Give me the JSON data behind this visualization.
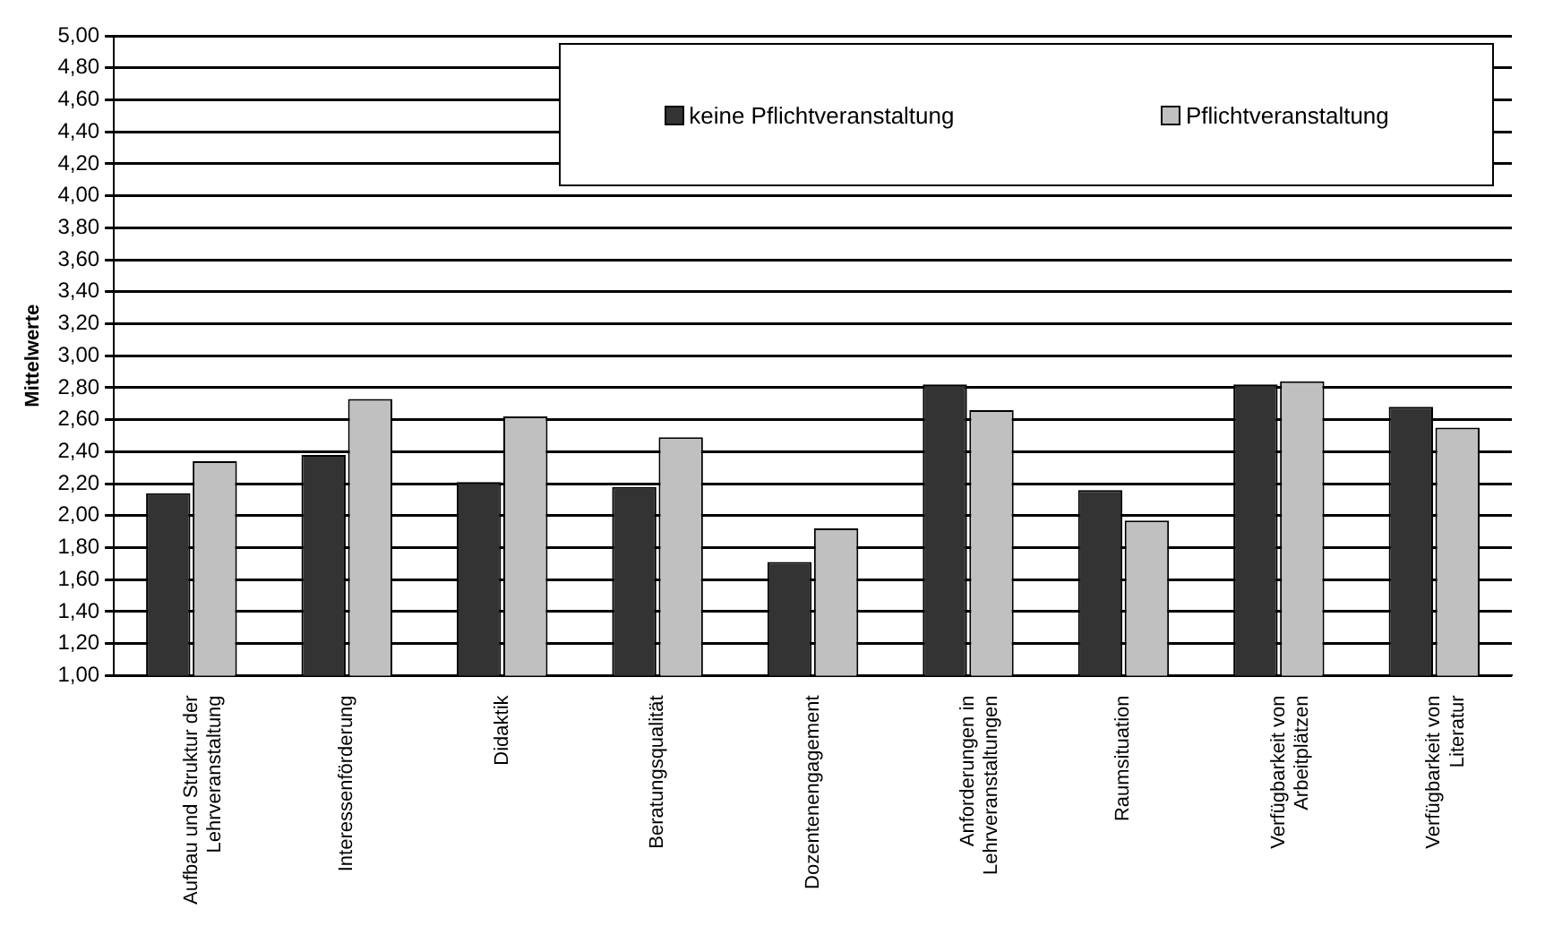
{
  "chart_data": {
    "type": "bar",
    "ylabel": "Mittelwerte",
    "categories": [
      "Aufbau und Struktur der Lehrveranstaltung",
      "Interessenförderung",
      "Didaktik",
      "Beratungsqualität",
      "Dozentenengagement",
      "Anforderungen in Lehrveranstaltungen",
      "Raumsituation",
      "Verfügbarkeit von Arbeitplätzen",
      "Verfügbarkeit von Literatur"
    ],
    "series": [
      {
        "name": "keine Pflichtveranstaltung",
        "color": "#333333",
        "values": [
          2.14,
          2.38,
          2.21,
          2.18,
          1.71,
          2.82,
          2.16,
          2.82,
          2.68
        ]
      },
      {
        "name": "Pflichtveranstaltung",
        "color": "#c0c0c0",
        "values": [
          2.34,
          2.73,
          2.62,
          2.49,
          1.92,
          2.66,
          1.97,
          2.84,
          2.55
        ]
      }
    ],
    "ylim": [
      1,
      5
    ],
    "yticks": [
      {
        "value": 1,
        "label": "1,00"
      },
      {
        "value": 1.2,
        "label": "1,20"
      },
      {
        "value": 1.4,
        "label": "1,40"
      },
      {
        "value": 1.6,
        "label": "1,60"
      },
      {
        "value": 1.8,
        "label": "1,80"
      },
      {
        "value": 2,
        "label": "2,00"
      },
      {
        "value": 2.2,
        "label": "2,20"
      },
      {
        "value": 2.4,
        "label": "2,40"
      },
      {
        "value": 2.6,
        "label": "2,60"
      },
      {
        "value": 2.8,
        "label": "2,80"
      },
      {
        "value": 3,
        "label": "3,00"
      },
      {
        "value": 3.2,
        "label": "3,20"
      },
      {
        "value": 3.4,
        "label": "3,40"
      },
      {
        "value": 3.6,
        "label": "3,60"
      },
      {
        "value": 3.8,
        "label": "3,80"
      },
      {
        "value": 4,
        "label": "4,00"
      },
      {
        "value": 4.2,
        "label": "4,20"
      },
      {
        "value": 4.4,
        "label": "4,40"
      },
      {
        "value": 4.6,
        "label": "4,60"
      },
      {
        "value": 4.8,
        "label": "4,80"
      },
      {
        "value": 5,
        "label": "5,00"
      }
    ],
    "grid": "y",
    "legend": "top right"
  }
}
